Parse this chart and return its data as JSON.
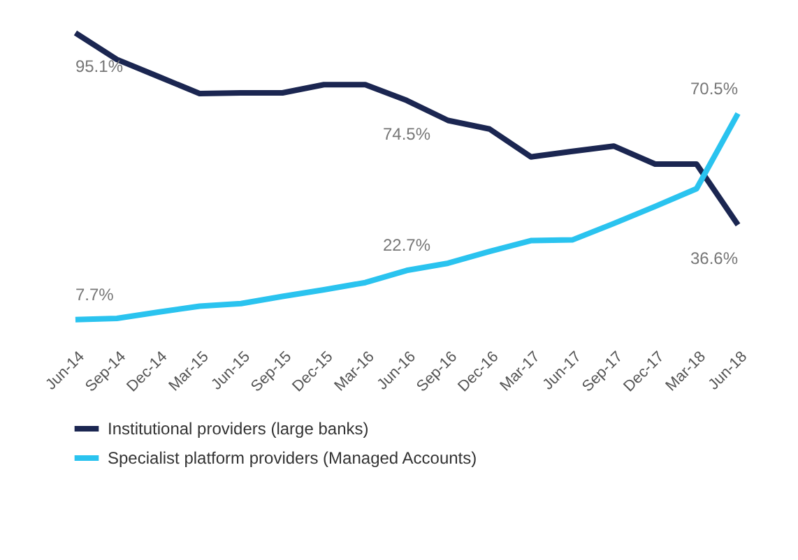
{
  "chart_data": {
    "type": "line",
    "categories": [
      "Jun-14",
      "Sep-14",
      "Dec-14",
      "Mar-15",
      "Jun-15",
      "Sep-15",
      "Dec-15",
      "Mar-16",
      "Jun-16",
      "Sep-16",
      "Dec-16",
      "Mar-17",
      "Jun-17",
      "Sep-17",
      "Dec-17",
      "Mar-18",
      "Jun-18"
    ],
    "series": [
      {
        "name": "Institutional providers (large banks)",
        "color": "#1b2651",
        "values": [
          95.1,
          87.0,
          81.8,
          76.6,
          76.8,
          76.8,
          79.3,
          79.3,
          74.5,
          68.4,
          65.8,
          57.3,
          59.0,
          60.6,
          55.1,
          55.1,
          36.6
        ],
        "value_labels": [
          "95.1%",
          null,
          null,
          null,
          null,
          null,
          null,
          null,
          "74.5%",
          null,
          null,
          null,
          null,
          null,
          null,
          null,
          "36.6%"
        ]
      },
      {
        "name": "Specialist platform providers (Managed Accounts)",
        "color": "#2ac3ef",
        "values": [
          7.7,
          8.1,
          10.0,
          11.8,
          12.6,
          14.8,
          16.8,
          19.0,
          22.7,
          24.9,
          28.5,
          31.8,
          32.0,
          37.0,
          42.2,
          47.6,
          70.5
        ],
        "value_labels": [
          "7.7%",
          null,
          null,
          null,
          null,
          null,
          null,
          null,
          "22.7%",
          null,
          null,
          null,
          null,
          null,
          null,
          null,
          "70.5%"
        ]
      }
    ],
    "legend": "bottom",
    "grid": false,
    "marker": "none",
    "line_style": "solid"
  }
}
